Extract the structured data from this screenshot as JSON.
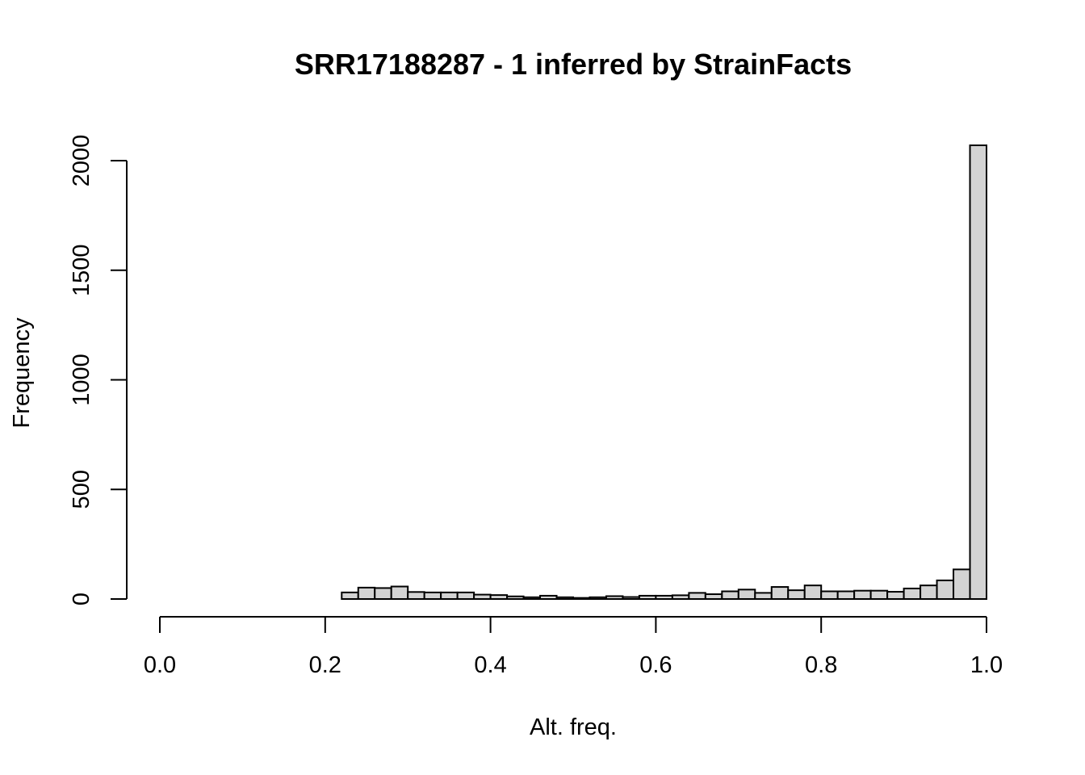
{
  "chart_data": {
    "type": "bar",
    "title": "SRR17188287 - 1 inferred by StrainFacts",
    "xlabel": "Alt. freq.",
    "ylabel": "Frequency",
    "xlim": [
      0.0,
      1.0
    ],
    "ylim": [
      0,
      2000
    ],
    "x_ticks": [
      "0.0",
      "0.2",
      "0.4",
      "0.6",
      "0.8",
      "1.0"
    ],
    "y_ticks": [
      "0",
      "500",
      "1000",
      "1500",
      "2000"
    ],
    "grid": false,
    "bar_color": "#d3d3d3",
    "bin_width": 0.02,
    "bins": [
      {
        "start": 0.22,
        "end": 0.24,
        "count": 30
      },
      {
        "start": 0.24,
        "end": 0.26,
        "count": 52
      },
      {
        "start": 0.26,
        "end": 0.28,
        "count": 50
      },
      {
        "start": 0.28,
        "end": 0.3,
        "count": 57
      },
      {
        "start": 0.3,
        "end": 0.32,
        "count": 32
      },
      {
        "start": 0.32,
        "end": 0.34,
        "count": 30
      },
      {
        "start": 0.34,
        "end": 0.36,
        "count": 30
      },
      {
        "start": 0.36,
        "end": 0.38,
        "count": 30
      },
      {
        "start": 0.38,
        "end": 0.4,
        "count": 20
      },
      {
        "start": 0.4,
        "end": 0.42,
        "count": 18
      },
      {
        "start": 0.42,
        "end": 0.44,
        "count": 12
      },
      {
        "start": 0.44,
        "end": 0.46,
        "count": 8
      },
      {
        "start": 0.46,
        "end": 0.48,
        "count": 15
      },
      {
        "start": 0.48,
        "end": 0.5,
        "count": 8
      },
      {
        "start": 0.5,
        "end": 0.52,
        "count": 5
      },
      {
        "start": 0.52,
        "end": 0.54,
        "count": 8
      },
      {
        "start": 0.54,
        "end": 0.56,
        "count": 13
      },
      {
        "start": 0.56,
        "end": 0.58,
        "count": 9
      },
      {
        "start": 0.58,
        "end": 0.6,
        "count": 15
      },
      {
        "start": 0.6,
        "end": 0.62,
        "count": 15
      },
      {
        "start": 0.62,
        "end": 0.64,
        "count": 17
      },
      {
        "start": 0.64,
        "end": 0.66,
        "count": 28
      },
      {
        "start": 0.66,
        "end": 0.68,
        "count": 22
      },
      {
        "start": 0.68,
        "end": 0.7,
        "count": 35
      },
      {
        "start": 0.7,
        "end": 0.72,
        "count": 43
      },
      {
        "start": 0.72,
        "end": 0.74,
        "count": 28
      },
      {
        "start": 0.74,
        "end": 0.76,
        "count": 55
      },
      {
        "start": 0.76,
        "end": 0.78,
        "count": 40
      },
      {
        "start": 0.78,
        "end": 0.8,
        "count": 62
      },
      {
        "start": 0.8,
        "end": 0.82,
        "count": 35
      },
      {
        "start": 0.82,
        "end": 0.84,
        "count": 35
      },
      {
        "start": 0.84,
        "end": 0.86,
        "count": 38
      },
      {
        "start": 0.86,
        "end": 0.88,
        "count": 38
      },
      {
        "start": 0.88,
        "end": 0.9,
        "count": 33
      },
      {
        "start": 0.9,
        "end": 0.92,
        "count": 48
      },
      {
        "start": 0.92,
        "end": 0.94,
        "count": 62
      },
      {
        "start": 0.94,
        "end": 0.96,
        "count": 85
      },
      {
        "start": 0.96,
        "end": 0.98,
        "count": 135
      },
      {
        "start": 0.98,
        "end": 1.0,
        "count": 2070
      }
    ]
  }
}
